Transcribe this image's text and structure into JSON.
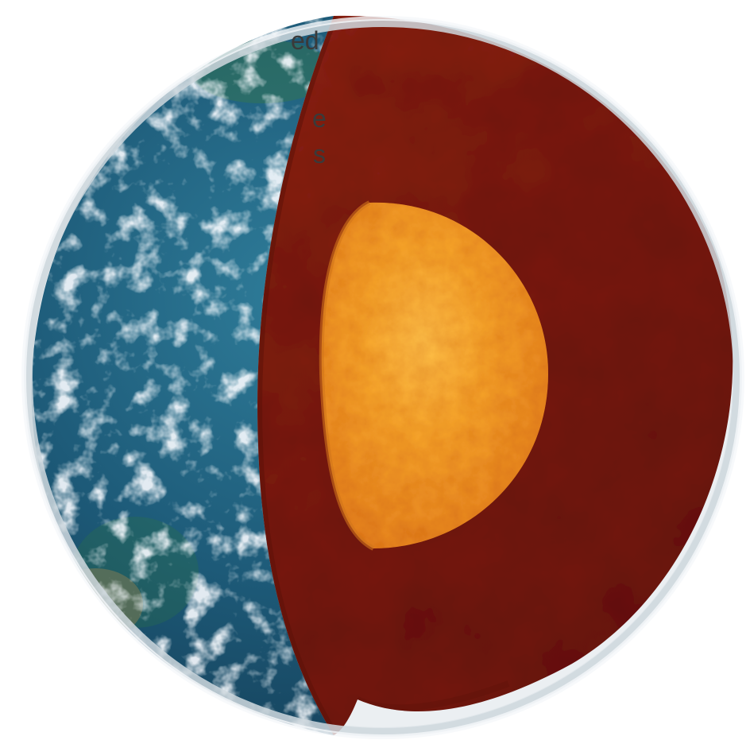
{
  "text_fragments": [
    "ed",
    "e",
    "s"
  ],
  "colors": {
    "ocean": "#1f5f7f",
    "clouds": "#e7eef2",
    "mantle": "#8c2214",
    "outer_core": "#f7a62b",
    "atmosphere": "#d9e0e5"
  },
  "objects": [
    "earth-globe",
    "ocean-surface",
    "cloud-cover",
    "mantle-cross-section",
    "outer-core-hemisphere",
    "atmosphere-rim"
  ]
}
